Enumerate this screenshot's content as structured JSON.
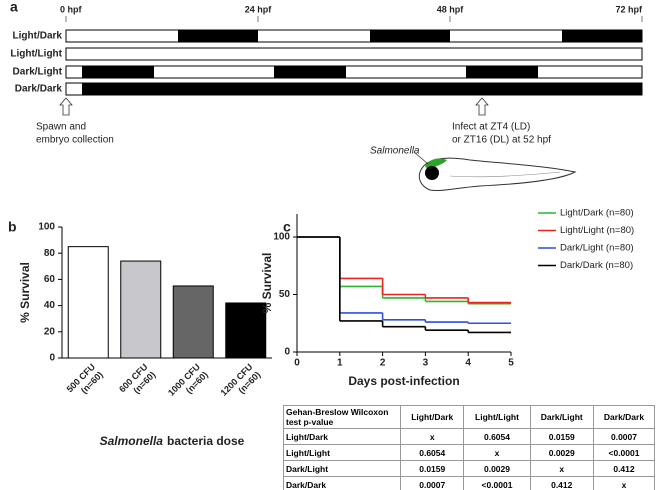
{
  "panel_a": {
    "label": "a",
    "xlim": [
      0,
      72
    ],
    "xticks": [
      {
        "value": 0,
        "label": "0 hpf"
      },
      {
        "value": 24,
        "label": "24 hpf"
      },
      {
        "value": 48,
        "label": "48 hpf"
      },
      {
        "value": 72,
        "label": "72 hpf"
      }
    ],
    "rows": [
      {
        "name": "Light/Dark",
        "color": "#2db52d",
        "dark_periods": [
          [
            14,
            24
          ],
          [
            38,
            48
          ],
          [
            62,
            72
          ]
        ]
      },
      {
        "name": "Light/Light",
        "color": "#e8251f",
        "dark_periods": []
      },
      {
        "name": "Dark/Light",
        "color": "#2f4fe0",
        "dark_periods": [
          [
            2,
            11
          ],
          [
            26,
            35
          ],
          [
            50,
            59
          ]
        ]
      },
      {
        "name": "Dark/Dark",
        "color": "#000000",
        "dark_periods": [
          [
            2,
            72
          ]
        ]
      }
    ],
    "annotations": [
      {
        "text": [
          "Spawn and",
          "embryo collection"
        ],
        "x": 0,
        "color": "#333333"
      },
      {
        "text": [
          "Infect at ZT4  (LD)",
          "or ZT16 (DL) at 52 hpf"
        ],
        "x": 52,
        "color": "#2a6ebb"
      }
    ],
    "fish_label": "Salmonella"
  },
  "chart_data": [
    {
      "panel_label": "b",
      "type": "bar",
      "categories": [
        [
          "500 CFU",
          "(n=60)"
        ],
        [
          "600 CFU",
          "(n=60)"
        ],
        [
          "1000 CFU",
          "(n=60)"
        ],
        [
          "1200 CFU",
          "(n=60)"
        ]
      ],
      "values": [
        85,
        74,
        55,
        42
      ],
      "colors": [
        "#ffffff",
        "#c8c8cc",
        "#666666",
        "#000000"
      ],
      "ylim": [
        0,
        100
      ],
      "yticks": [
        0,
        20,
        40,
        60,
        80,
        100
      ],
      "y_label": "% Survival",
      "x_label": [
        "Salmonella",
        "bacteria dose"
      ]
    },
    {
      "panel_label": "c",
      "type": "step",
      "x": [
        0,
        1,
        2,
        3,
        4
      ],
      "xlim": [
        0,
        5
      ],
      "xticks": [
        0,
        1,
        2,
        3,
        4,
        5
      ],
      "ylim": [
        0,
        120
      ],
      "yticks": [
        0,
        50,
        100
      ],
      "x_label": "Days post-infection",
      "y_label": "% Survival",
      "legend": "upper right",
      "series": [
        {
          "name": "Light/Dark (n=80)",
          "color": "#2db52d",
          "values": [
            100,
            57,
            47,
            44,
            42
          ]
        },
        {
          "name": "Light/Light (n=80)",
          "color": "#e8251f",
          "values": [
            100,
            64,
            50,
            47,
            43
          ]
        },
        {
          "name": "Dark/Light (n=80)",
          "color": "#2f4fe0",
          "values": [
            100,
            34,
            28,
            26,
            25
          ]
        },
        {
          "name": "Dark/Dark (n=80)",
          "color": "#000000",
          "values": [
            100,
            27,
            22,
            19,
            17
          ]
        }
      ]
    }
  ],
  "table": {
    "header": [
      "Gehan-Breslow Wilcoxon test p-value",
      "Light/Dark",
      "Light/Light",
      "Dark/Light",
      "Dark/Dark"
    ],
    "rows": [
      [
        "Light/Dark",
        "x",
        0.6054,
        0.0159,
        0.0007
      ],
      [
        "Light/Light",
        0.6054,
        "x",
        0.0029,
        "<0.0001"
      ],
      [
        "Dark/Light",
        0.0159,
        0.0029,
        "x",
        0.412
      ],
      [
        "Dark/Dark",
        0.0007,
        "<0.0001",
        0.412,
        "x"
      ]
    ]
  }
}
